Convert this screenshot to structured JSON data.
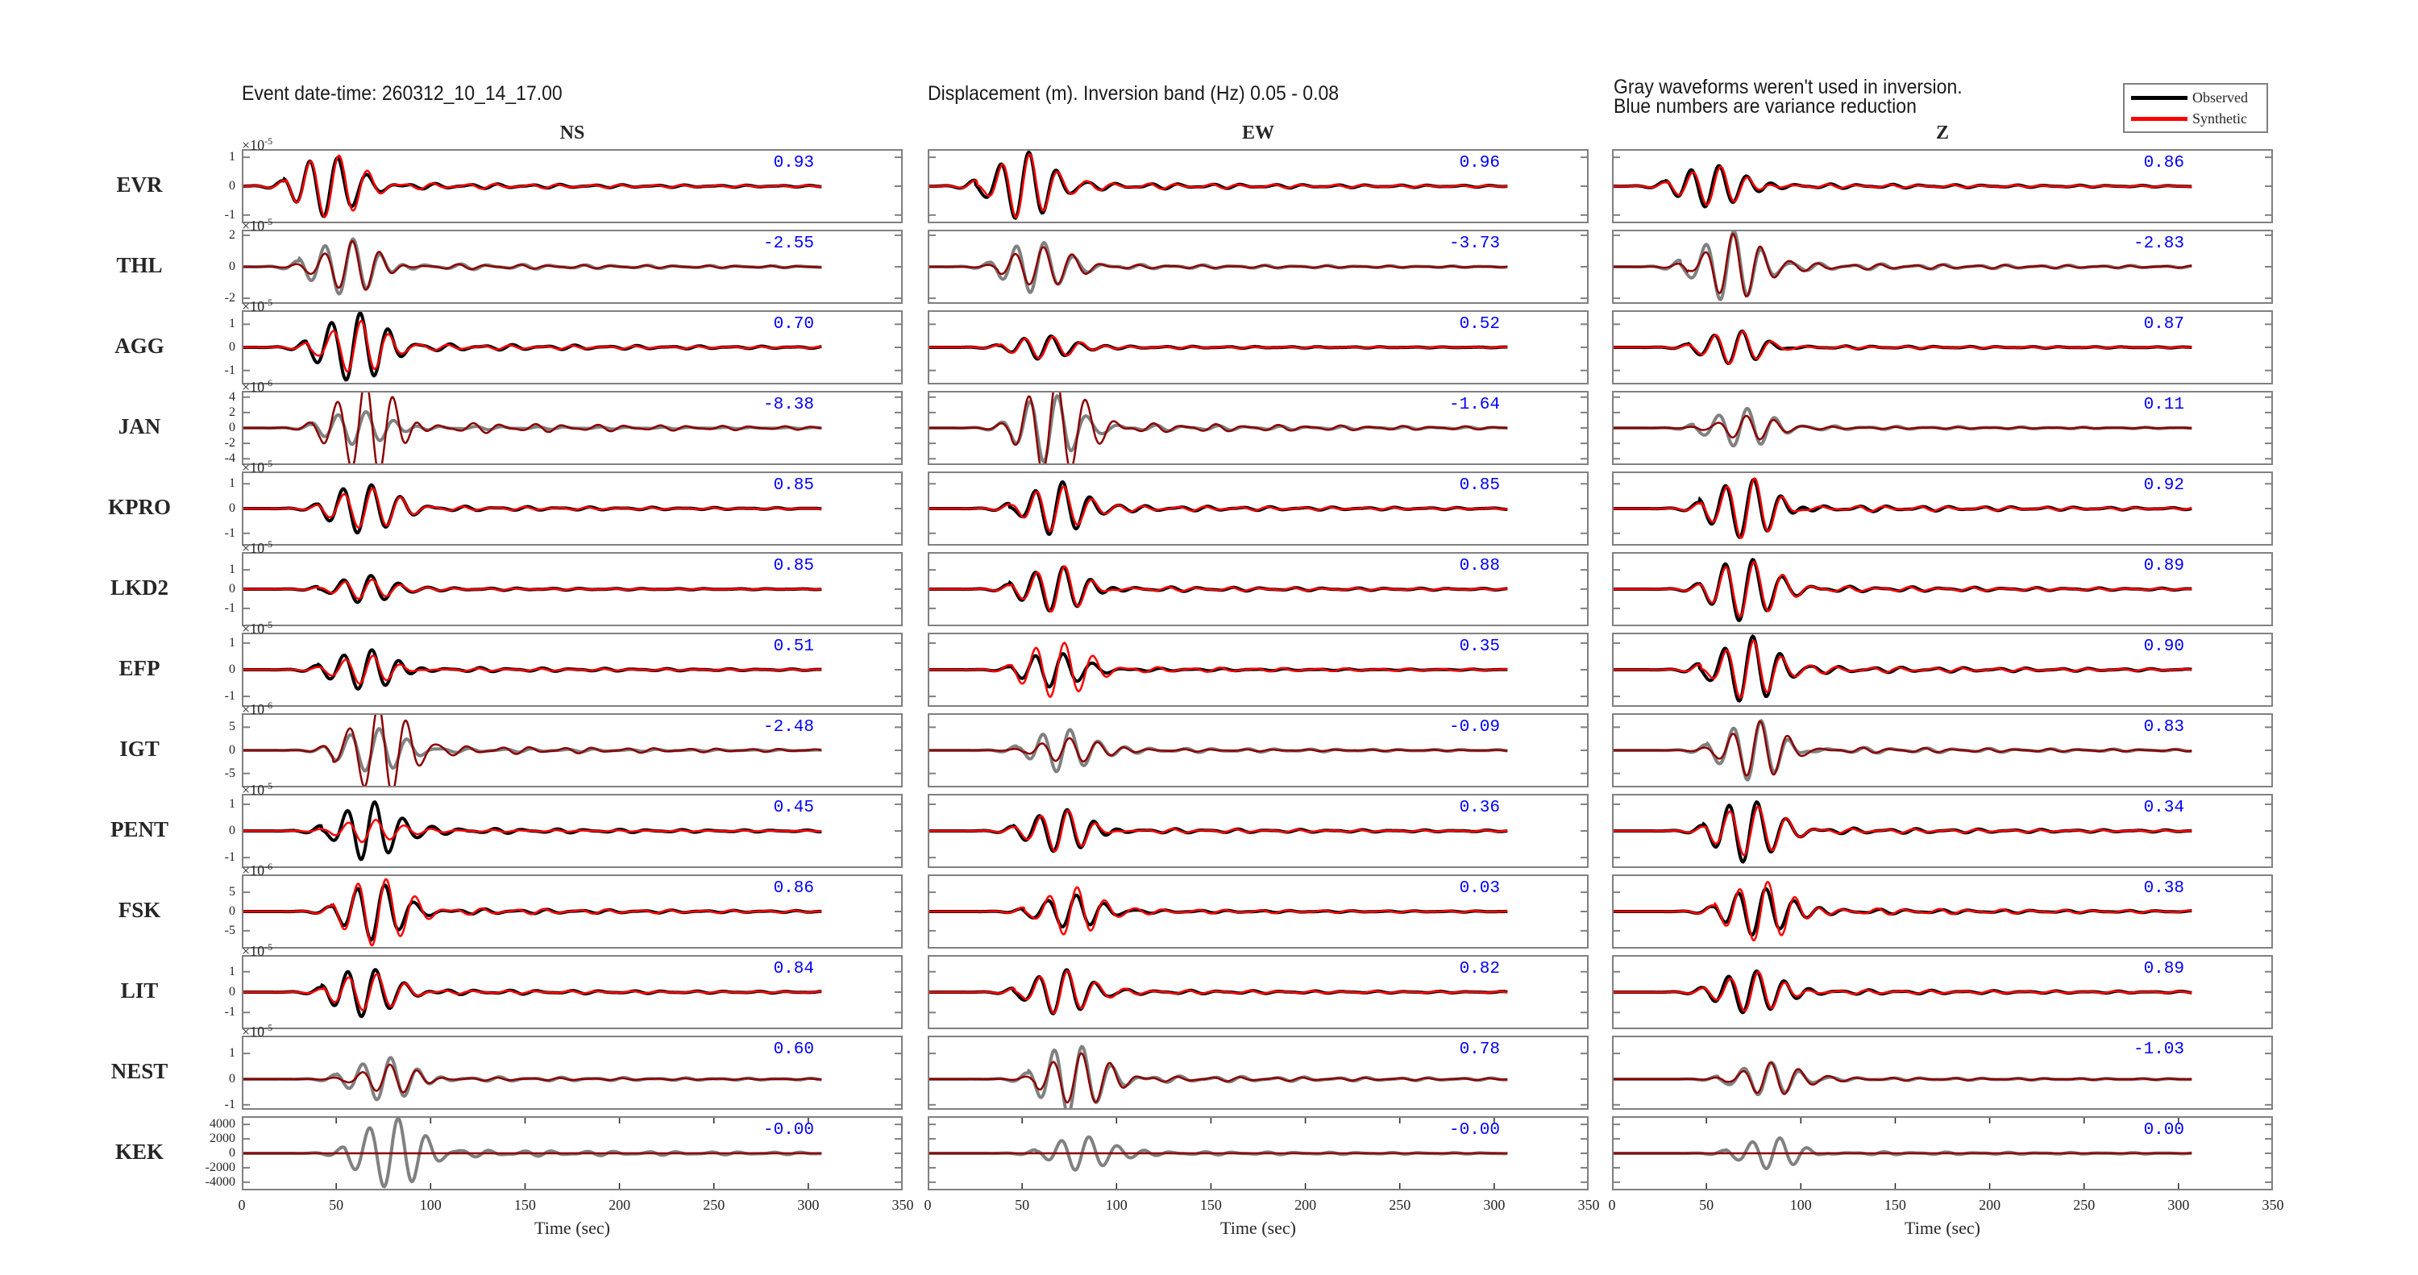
{
  "header": {
    "event": "Event  date-time:  260312_10_14_17.00",
    "band": "Displacement (m).  Inversion band (Hz)  0.05 - 0.08",
    "note_line1": "Gray waveforms weren't used in inversion.",
    "note_line2": "Blue numbers are variance reduction"
  },
  "legend": {
    "observed": "Observed",
    "synthetic": "Synthetic"
  },
  "colors": {
    "observed": "#000000",
    "synthetic": "#ff0000",
    "unused_observed": "#808080",
    "unused_synthetic": "#8b0000",
    "variance": "#0000ff",
    "frame": "#808080"
  },
  "chart_data": {
    "type": "line",
    "components": [
      "NS",
      "EW",
      "Z"
    ],
    "xlabel": "Time (sec)",
    "xlim": [
      0,
      350
    ],
    "xticks": [
      "0",
      "50",
      "100",
      "150",
      "200",
      "250",
      "300",
      "350"
    ],
    "trace_end_s": 307,
    "rows": [
      {
        "station": "EVR",
        "used": true,
        "exponent": "-5",
        "yticks": [
          "1",
          "0",
          "-1"
        ],
        "ytick_values": [
          1,
          0,
          -1
        ],
        "ylim": [
          -1.2,
          1.2
        ],
        "arrival_s": 50,
        "comps": [
          {
            "vr": "0.93",
            "obs_amp": 1.0,
            "syn_amp": 1.05
          },
          {
            "vr": "0.96",
            "obs_amp": 1.1,
            "syn_amp": 1.1
          },
          {
            "vr": "0.86",
            "obs_amp": 0.85,
            "syn_amp": 0.75
          }
        ]
      },
      {
        "station": "THL",
        "used": false,
        "exponent": "-5",
        "yticks": [
          "2",
          "0",
          "-2"
        ],
        "ytick_values": [
          2,
          0,
          -2
        ],
        "ylim": [
          -2.2,
          2.2
        ],
        "arrival_s": 58,
        "comps": [
          {
            "vr": "-2.55",
            "obs_amp": 2.0,
            "syn_amp": 1.7
          },
          {
            "vr": "-3.73",
            "obs_amp": 1.5,
            "syn_amp": 1.2
          },
          {
            "vr": "-2.83",
            "obs_amp": 2.2,
            "syn_amp": 2.0
          }
        ]
      },
      {
        "station": "AGG",
        "used": true,
        "exponent": "-5",
        "yticks": [
          "1",
          "0",
          "-1"
        ],
        "ytick_values": [
          1,
          0,
          -1
        ],
        "ylim": [
          -1.5,
          1.5
        ],
        "arrival_s": 62,
        "comps": [
          {
            "vr": "0.70",
            "obs_amp": 1.45,
            "syn_amp": 1.1
          },
          {
            "vr": "0.52",
            "obs_amp": 0.55,
            "syn_amp": 0.55
          },
          {
            "vr": "0.87",
            "obs_amp": 0.7,
            "syn_amp": 0.65
          }
        ]
      },
      {
        "station": "JAN",
        "used": false,
        "exponent": "-6",
        "yticks": [
          "4",
          "2",
          "0",
          "-2",
          "-4"
        ],
        "ytick_values": [
          4,
          2,
          0,
          -2,
          -4
        ],
        "ylim": [
          -4.5,
          4.5
        ],
        "arrival_s": 65,
        "comps": [
          {
            "vr": "-8.38",
            "obs_amp": 2.5,
            "syn_amp": 7.0
          },
          {
            "vr": "-1.64",
            "obs_amp": 4.0,
            "syn_amp": 6.0
          },
          {
            "vr": "0.11",
            "obs_amp": 2.5,
            "syn_amp": 1.5
          }
        ]
      },
      {
        "station": "KPRO",
        "used": true,
        "exponent": "-5",
        "yticks": [
          "1",
          "0",
          "-1"
        ],
        "ytick_values": [
          1,
          0,
          -1
        ],
        "ylim": [
          -1.4,
          1.4
        ],
        "arrival_s": 68,
        "comps": [
          {
            "vr": "0.85",
            "obs_amp": 0.95,
            "syn_amp": 0.8
          },
          {
            "vr": "0.85",
            "obs_amp": 1.1,
            "syn_amp": 1.0
          },
          {
            "vr": "0.92",
            "obs_amp": 1.3,
            "syn_amp": 1.2
          }
        ]
      },
      {
        "station": "LKD2",
        "used": true,
        "exponent": "-5",
        "yticks": [
          "1",
          "0",
          "-1"
        ],
        "ytick_values": [
          1,
          0,
          -1
        ],
        "ylim": [
          -1.8,
          1.8
        ],
        "arrival_s": 68,
        "comps": [
          {
            "vr": "0.85",
            "obs_amp": 0.7,
            "syn_amp": 0.55
          },
          {
            "vr": "0.88",
            "obs_amp": 1.3,
            "syn_amp": 1.2
          },
          {
            "vr": "0.89",
            "obs_amp": 1.5,
            "syn_amp": 1.4
          }
        ]
      },
      {
        "station": "EFP",
        "used": true,
        "exponent": "-5",
        "yticks": [
          "1",
          "0",
          "-1"
        ],
        "ytick_values": [
          1,
          0,
          -1
        ],
        "ylim": [
          -1.3,
          1.3
        ],
        "arrival_s": 68,
        "comps": [
          {
            "vr": "0.51",
            "obs_amp": 0.85,
            "syn_amp": 0.55
          },
          {
            "vr": "0.35",
            "obs_amp": 0.6,
            "syn_amp": 1.0
          },
          {
            "vr": "0.90",
            "obs_amp": 1.2,
            "syn_amp": 1.1
          }
        ]
      },
      {
        "station": "IGT",
        "used": false,
        "exponent": "-6",
        "yticks": [
          "5",
          "0",
          "-5"
        ],
        "ytick_values": [
          5,
          0,
          -5
        ],
        "ylim": [
          -7.5,
          7.5
        ],
        "arrival_s": 72,
        "comps": [
          {
            "vr": "-2.48",
            "obs_amp": 4.5,
            "syn_amp": 9.0
          },
          {
            "vr": "-0.09",
            "obs_amp": 5.0,
            "syn_amp": 3.0
          },
          {
            "vr": "0.83",
            "obs_amp": 6.5,
            "syn_amp": 6.0
          }
        ]
      },
      {
        "station": "PENT",
        "used": true,
        "exponent": "-5",
        "yticks": [
          "1",
          "0",
          "-1"
        ],
        "ytick_values": [
          1,
          0,
          -1
        ],
        "ylim": [
          -1.3,
          1.3
        ],
        "arrival_s": 70,
        "comps": [
          {
            "vr": "0.45",
            "obs_amp": 1.05,
            "syn_amp": 0.45
          },
          {
            "vr": "0.36",
            "obs_amp": 0.9,
            "syn_amp": 0.8
          },
          {
            "vr": "0.34",
            "obs_amp": 1.1,
            "syn_amp": 0.9
          }
        ]
      },
      {
        "station": "FSK",
        "used": true,
        "exponent": "-6",
        "yticks": [
          "5",
          "0",
          "-5"
        ],
        "ytick_values": [
          5,
          0,
          -5
        ],
        "ylim": [
          -9,
          9
        ],
        "arrival_s": 75,
        "comps": [
          {
            "vr": "0.86",
            "obs_amp": 7.0,
            "syn_amp": 8.5
          },
          {
            "vr": "0.03",
            "obs_amp": 4.0,
            "syn_amp": 6.0
          },
          {
            "vr": "0.38",
            "obs_amp": 7.0,
            "syn_amp": 9.0
          }
        ]
      },
      {
        "station": "LIT",
        "used": true,
        "exponent": "-5",
        "yticks": [
          "1",
          "0",
          "-1"
        ],
        "ytick_values": [
          1,
          0,
          -1
        ],
        "ylim": [
          -1.7,
          1.7
        ],
        "arrival_s": 70,
        "comps": [
          {
            "vr": "0.84",
            "obs_amp": 1.2,
            "syn_amp": 0.9
          },
          {
            "vr": "0.82",
            "obs_amp": 1.0,
            "syn_amp": 1.0
          },
          {
            "vr": "0.89",
            "obs_amp": 1.2,
            "syn_amp": 1.1
          }
        ]
      },
      {
        "station": "NEST",
        "used": false,
        "exponent": "-5",
        "yticks": [
          "1",
          "0",
          "-1"
        ],
        "ytick_values": [
          1,
          0,
          -1
        ],
        "ylim": [
          -1.1,
          1.6
        ],
        "arrival_s": 78,
        "comps": [
          {
            "vr": "0.60",
            "obs_amp": 0.95,
            "syn_amp": 0.6
          },
          {
            "vr": "0.78",
            "obs_amp": 1.3,
            "syn_amp": 1.0
          },
          {
            "vr": "-1.03",
            "obs_amp": 0.6,
            "syn_amp": 0.6
          }
        ]
      },
      {
        "station": "KEK",
        "used": false,
        "exponent": "",
        "yticks": [
          "4000",
          "2000",
          "0",
          "-2000",
          "-4000"
        ],
        "ytick_values": [
          4000,
          2000,
          0,
          -2000,
          -4000
        ],
        "ylim": [
          -4800,
          4800
        ],
        "arrival_s": 82,
        "comps": [
          {
            "vr": "-0.00",
            "obs_amp": 4600,
            "syn_amp": 0
          },
          {
            "vr": "-0.00",
            "obs_amp": 2500,
            "syn_amp": 0
          },
          {
            "vr": "0.00",
            "obs_amp": 2200,
            "syn_amp": 0
          }
        ]
      }
    ]
  }
}
